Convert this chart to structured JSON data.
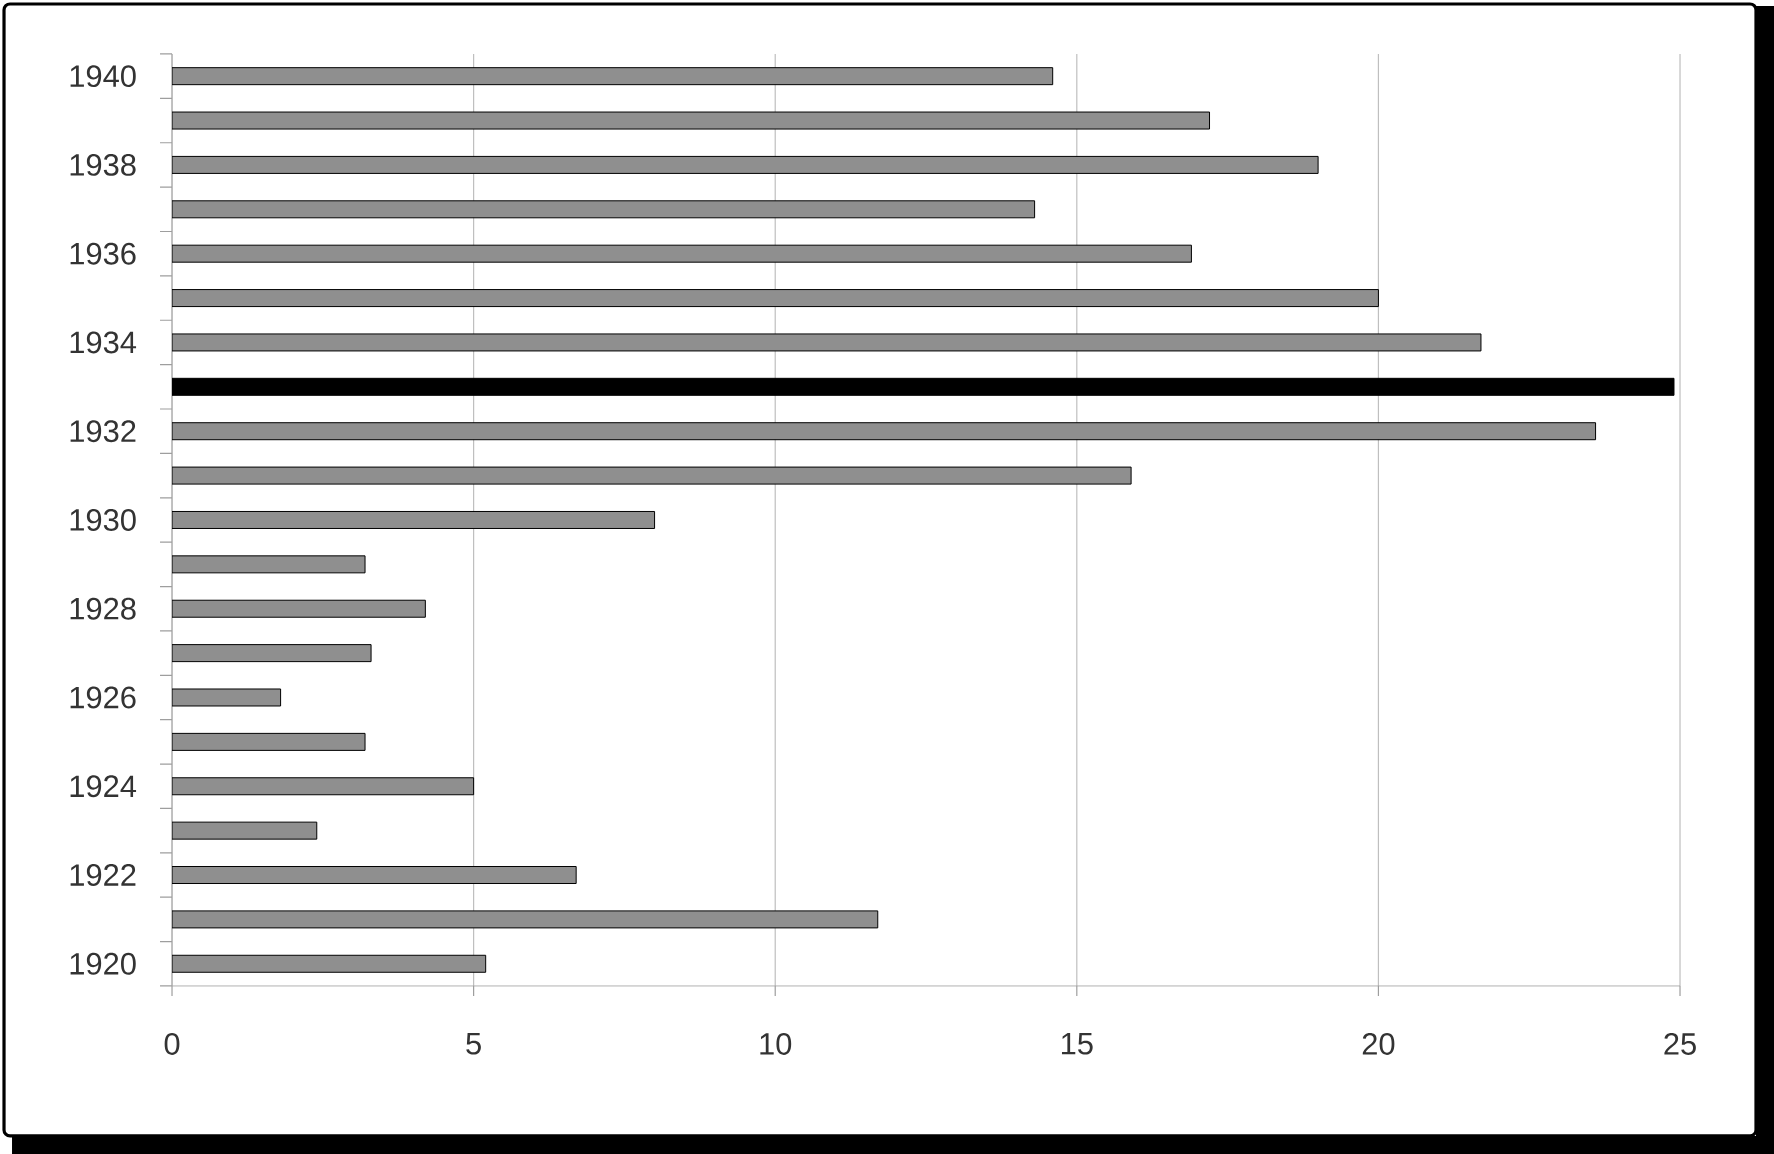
{
  "chart_data": {
    "type": "bar",
    "orientation": "horizontal",
    "categories": [
      "1940",
      null,
      "1938",
      null,
      "1936",
      null,
      "1934",
      null,
      "1932",
      null,
      "1930",
      null,
      "1928",
      null,
      "1926",
      null,
      "1924",
      null,
      "1922",
      null,
      "1920"
    ],
    "values": [
      14.6,
      17.2,
      19.0,
      14.3,
      16.9,
      20.0,
      21.7,
      24.9,
      23.6,
      15.9,
      8.0,
      3.2,
      4.2,
      3.3,
      1.8,
      3.2,
      5.0,
      2.4,
      6.7,
      11.7,
      5.2
    ],
    "colors": [
      "#8f8f8f",
      "#8f8f8f",
      "#8f8f8f",
      "#8f8f8f",
      "#8f8f8f",
      "#8f8f8f",
      "#8f8f8f",
      "#000000",
      "#8f8f8f",
      "#8f8f8f",
      "#8f8f8f",
      "#8f8f8f",
      "#8f8f8f",
      "#8f8f8f",
      "#8f8f8f",
      "#8f8f8f",
      "#8f8f8f",
      "#8f8f8f",
      "#8f8f8f",
      "#8f8f8f",
      "#8f8f8f"
    ],
    "xlim": [
      0,
      25
    ],
    "xticks": [
      0,
      5,
      10,
      15,
      20,
      25
    ],
    "grid": "x"
  }
}
